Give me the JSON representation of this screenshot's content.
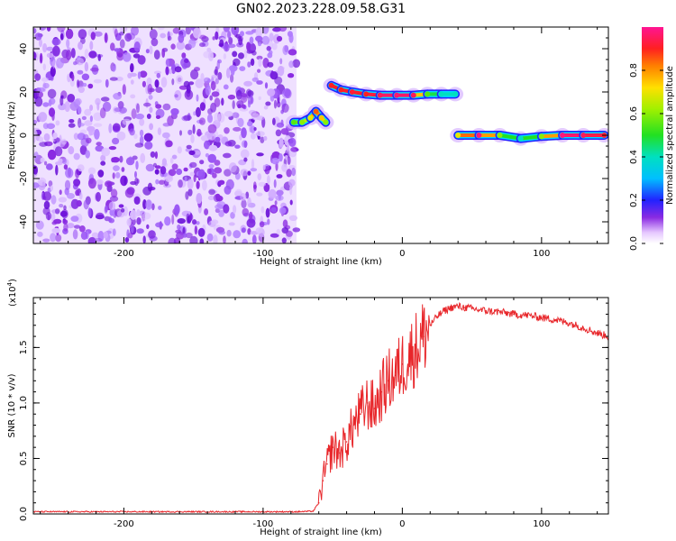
{
  "figure_title": "GN02.2023.228.09.58.G31",
  "chart_data": [
    {
      "type": "heatmap",
      "title": "",
      "xlabel": "Height of straight line (km)",
      "ylabel": "Frequency (Hz)",
      "xlim": [
        -265,
        148
      ],
      "ylim": [
        -50,
        50
      ],
      "xticks": [
        -200,
        -100,
        0,
        100
      ],
      "xtick_labels": [
        "-200",
        "-100",
        "0",
        "100"
      ],
      "yticks": [
        -40,
        -20,
        0,
        20,
        40
      ],
      "ytick_labels": [
        "-40",
        "-20",
        "0",
        "20",
        "40"
      ],
      "colorbar": {
        "label": "Normalized spectral amplitude",
        "range": [
          0,
          1
        ],
        "ticks": [
          0.0,
          0.2,
          0.4,
          0.6,
          0.8
        ],
        "tick_labels": [
          "0.0",
          "0.2",
          "0.4",
          "0.6",
          "0.8"
        ]
      },
      "noise_region": {
        "x": [
          -265,
          -76
        ],
        "y": [
          -50,
          50
        ],
        "amplitude": 0.15
      },
      "signal_track": [
        {
          "x": -78,
          "y": 6,
          "amp": 0.55
        },
        {
          "x": -72,
          "y": 6,
          "amp": 0.6
        },
        {
          "x": -66,
          "y": 8,
          "amp": 0.7
        },
        {
          "x": -62,
          "y": 11,
          "amp": 0.85
        },
        {
          "x": -58,
          "y": 8,
          "amp": 0.75
        },
        {
          "x": -55,
          "y": 6,
          "amp": 0.6
        },
        {
          "x": -51,
          "y": 23,
          "amp": 0.9
        },
        {
          "x": -44,
          "y": 21,
          "amp": 0.9
        },
        {
          "x": -36,
          "y": 20,
          "amp": 0.92
        },
        {
          "x": -26,
          "y": 19,
          "amp": 0.9
        },
        {
          "x": -16,
          "y": 18.5,
          "amp": 0.95
        },
        {
          "x": -4,
          "y": 18.5,
          "amp": 0.97
        },
        {
          "x": 8,
          "y": 18.5,
          "amp": 0.95
        },
        {
          "x": 18,
          "y": 19,
          "amp": 0.55
        },
        {
          "x": 28,
          "y": 19,
          "amp": 0.4
        },
        {
          "x": 38,
          "y": 19,
          "amp": 0.4
        },
        {
          "x": 40,
          "y": 0,
          "amp": 0.7
        },
        {
          "x": 55,
          "y": 0,
          "amp": 0.98
        },
        {
          "x": 70,
          "y": 0,
          "amp": 0.6
        },
        {
          "x": 85,
          "y": -1.5,
          "amp": 0.4
        },
        {
          "x": 100,
          "y": -0.5,
          "amp": 0.6
        },
        {
          "x": 115,
          "y": 0,
          "amp": 0.98
        },
        {
          "x": 130,
          "y": 0,
          "amp": 0.95
        },
        {
          "x": 145,
          "y": 0,
          "amp": 0.92
        }
      ]
    },
    {
      "type": "line",
      "title": "",
      "xlabel": "Height of straight line (km)",
      "ylabel": "SNR (10 * v/v)",
      "y_scale_label": "(x10",
      "y_scale_exp": "4",
      "xlim": [
        -265,
        148
      ],
      "ylim": [
        0,
        1.95
      ],
      "xticks": [
        -200,
        -100,
        0,
        100
      ],
      "xtick_labels": [
        "-200",
        "-100",
        "0",
        "100"
      ],
      "yticks": [
        0,
        0.5,
        1.0,
        1.5
      ],
      "ytick_labels": [
        "0.0",
        "0.5",
        "1.0",
        "1.5"
      ],
      "series": [
        {
          "color": "#e8262a",
          "x": [
            -265,
            -200,
            -150,
            -100,
            -75,
            -64,
            -60,
            -57,
            -54,
            -50,
            -45,
            -40,
            -35,
            -30,
            -25,
            -20,
            -15,
            -10,
            -5,
            0,
            5,
            10,
            15,
            20,
            25,
            30,
            35,
            40,
            45,
            50,
            60,
            70,
            80,
            90,
            100,
            110,
            120,
            130,
            140,
            148
          ],
          "y": [
            0.02,
            0.02,
            0.02,
            0.02,
            0.02,
            0.025,
            0.1,
            0.3,
            0.45,
            0.6,
            0.55,
            0.65,
            0.8,
            0.9,
            1.0,
            0.95,
            1.1,
            1.2,
            1.25,
            1.35,
            1.42,
            1.5,
            1.6,
            1.7,
            1.78,
            1.83,
            1.86,
            1.87,
            1.86,
            1.85,
            1.83,
            1.82,
            1.8,
            1.79,
            1.77,
            1.75,
            1.72,
            1.68,
            1.63,
            1.6
          ]
        }
      ]
    }
  ]
}
